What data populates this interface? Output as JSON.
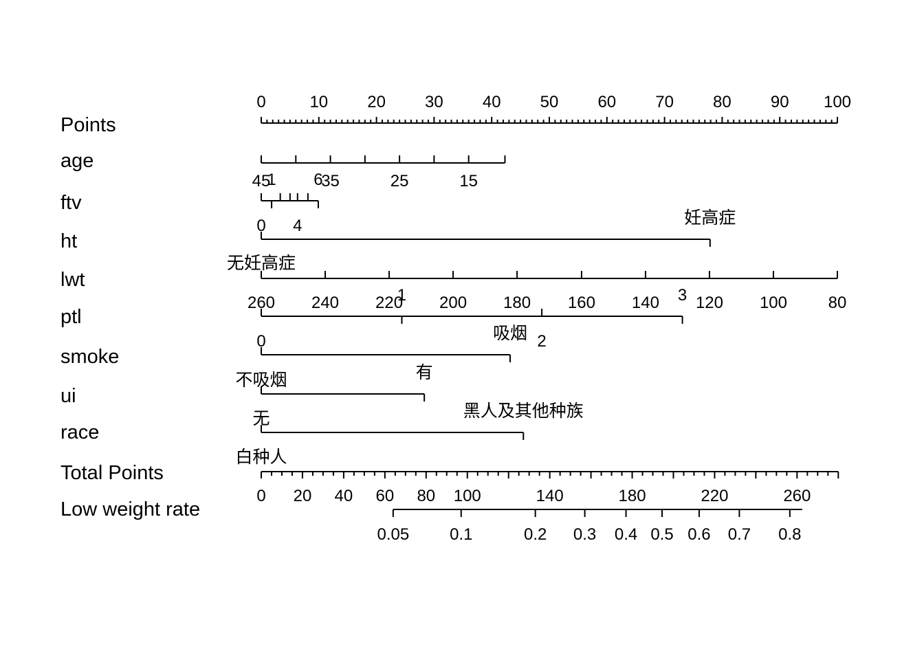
{
  "chart_data": {
    "type": "nomogram",
    "points_axis": {
      "label": "Points",
      "range": [
        0,
        100
      ],
      "ticks": [
        "0",
        "10",
        "20",
        "30",
        "40",
        "50",
        "60",
        "70",
        "80",
        "90",
        "100"
      ]
    },
    "variables": [
      {
        "label": "age",
        "side": "below",
        "ticks": [
          {
            "value": 45,
            "points": 0,
            "text": "45"
          },
          {
            "value": 40,
            "points": 6
          },
          {
            "value": 35,
            "points": 12,
            "text": "35"
          },
          {
            "value": 30,
            "points": 18
          },
          {
            "value": 25,
            "points": 24,
            "text": "25"
          },
          {
            "value": 20,
            "points": 30
          },
          {
            "value": 15,
            "points": 36,
            "text": "15"
          },
          {
            "value": 10,
            "points": 42.3
          }
        ]
      },
      {
        "label": "ftv",
        "side": "mixed",
        "ticks": [
          {
            "value": 0,
            "points": 0,
            "text": "0",
            "pos": "below"
          },
          {
            "value": 1,
            "points": 1.8,
            "text": "1",
            "pos": "above"
          },
          {
            "value": 2,
            "points": 3.3
          },
          {
            "value": 3,
            "points": 5.0
          },
          {
            "value": 4,
            "points": 6.3,
            "text": "4",
            "pos": "below"
          },
          {
            "value": 5,
            "points": 8.1
          },
          {
            "value": 6,
            "points": 9.9,
            "text": "6",
            "pos": "above"
          }
        ]
      },
      {
        "label": "ht",
        "side": "mixed",
        "ticks": [
          {
            "value": "无妊高症",
            "points": 0,
            "text": "无妊高症",
            "pos": "below"
          },
          {
            "value": "妊高症",
            "points": 77.9,
            "text": "妊高症",
            "pos": "above"
          }
        ]
      },
      {
        "label": "lwt",
        "side": "below",
        "ticks": [
          {
            "value": 260,
            "points": 0,
            "text": "260"
          },
          {
            "value": 240,
            "points": 11.1,
            "text": "240"
          },
          {
            "value": 220,
            "points": 22.2,
            "text": "220"
          },
          {
            "value": 200,
            "points": 33.3,
            "text": "200"
          },
          {
            "value": 180,
            "points": 44.4,
            "text": "180"
          },
          {
            "value": 160,
            "points": 55.6,
            "text": "160"
          },
          {
            "value": 140,
            "points": 66.7,
            "text": "140"
          },
          {
            "value": 120,
            "points": 77.8,
            "text": "120"
          },
          {
            "value": 100,
            "points": 88.9,
            "text": "100"
          },
          {
            "value": 80,
            "points": 100,
            "text": "80"
          }
        ]
      },
      {
        "label": "ptl",
        "side": "mixed",
        "ticks": [
          {
            "value": 0,
            "points": 0,
            "text": "0",
            "pos": "below"
          },
          {
            "value": 1,
            "points": 24.4,
            "text": "1",
            "pos": "above"
          },
          {
            "value": 2,
            "points": 48.7,
            "text": "2",
            "pos": "below"
          },
          {
            "value": 3,
            "points": 73.1,
            "text": "3",
            "pos": "above"
          }
        ]
      },
      {
        "label": "smoke",
        "side": "mixed",
        "ticks": [
          {
            "value": "不吸烟",
            "points": 0,
            "text": "不吸烟",
            "pos": "below"
          },
          {
            "value": "吸烟",
            "points": 43.2,
            "text": "吸烟",
            "pos": "above"
          }
        ]
      },
      {
        "label": "ui",
        "side": "mixed",
        "ticks": [
          {
            "value": "无",
            "points": 0,
            "text": "无",
            "pos": "below"
          },
          {
            "value": "有",
            "points": 28.3,
            "text": "有",
            "pos": "above"
          }
        ]
      },
      {
        "label": "race",
        "side": "mixed",
        "ticks": [
          {
            "value": "白种人",
            "points": 0,
            "text": "白种人",
            "pos": "below"
          },
          {
            "value": "黑人及其他种族",
            "points": 45.5,
            "text": "黑人及其他种族",
            "pos": "above"
          }
        ]
      }
    ],
    "total_points_axis": {
      "label": "Total Points",
      "range": [
        0,
        280
      ],
      "labeled_ticks": [
        {
          "value": 0,
          "text": "0"
        },
        {
          "value": 20,
          "text": "20"
        },
        {
          "value": 40,
          "text": "40"
        },
        {
          "value": 60,
          "text": "60"
        },
        {
          "value": 80,
          "text": "80"
        },
        {
          "value": 100,
          "text": "100"
        },
        {
          "value": 140,
          "text": "140"
        },
        {
          "value": 180,
          "text": "180"
        },
        {
          "value": 220,
          "text": "220"
        },
        {
          "value": 260,
          "text": "260"
        }
      ]
    },
    "probability_axis": {
      "label": "Low weight rate",
      "ticks": [
        {
          "value": 0.05,
          "total_points": 64,
          "text": "0.05"
        },
        {
          "value": 0.1,
          "total_points": 97,
          "text": "0.1"
        },
        {
          "value": 0.2,
          "total_points": 133,
          "text": "0.2"
        },
        {
          "value": 0.3,
          "total_points": 157,
          "text": "0.3"
        },
        {
          "value": 0.4,
          "total_points": 177,
          "text": "0.4"
        },
        {
          "value": 0.5,
          "total_points": 194.5,
          "text": "0.5"
        },
        {
          "value": 0.6,
          "total_points": 212.5,
          "text": "0.6"
        },
        {
          "value": 0.7,
          "total_points": 232,
          "text": "0.7"
        },
        {
          "value": 0.8,
          "total_points": 256.5,
          "text": "0.8"
        }
      ],
      "line_end_total_points": 262.5
    }
  }
}
